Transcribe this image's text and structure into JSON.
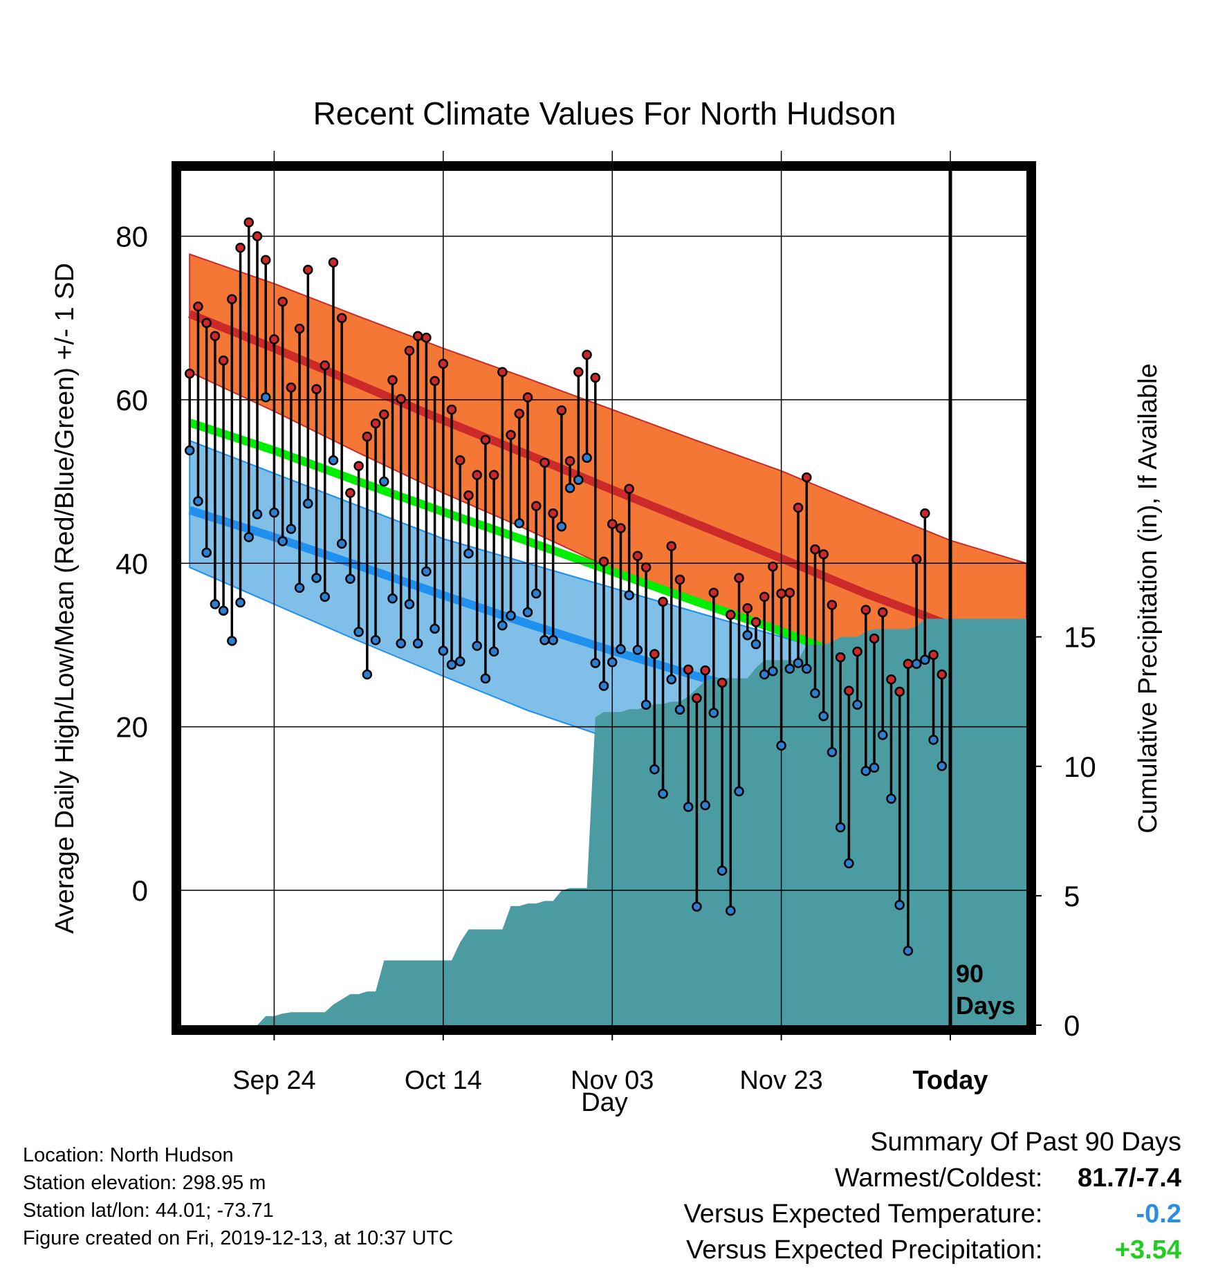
{
  "chart_data": {
    "type": "line",
    "title": "Recent Climate Values For North Hudson",
    "xlabel": "Day",
    "ylabel": "Average Daily High/Low/Mean (Red/Blue/Green) +/- 1 SD",
    "y2label": "Cumulative Precipitation (in), If Available",
    "x_tick_labels": [
      "Sep 24",
      "Oct 14",
      "Nov 03",
      "Nov 23",
      "Today"
    ],
    "x_tick_days": [
      10,
      30,
      50,
      70,
      90
    ],
    "x_range": [
      -1,
      99
    ],
    "y_ticks": [
      0,
      20,
      40,
      60,
      80
    ],
    "ylim": [
      -16.5,
      88
    ],
    "y2_ticks": [
      0,
      5,
      10,
      15
    ],
    "y2lim": [
      0,
      33
    ],
    "today_marker": "90\nDays",
    "grid": true,
    "colors": {
      "high_mean": "#cc2a2a",
      "high_band": "#f47735",
      "low_mean": "#2090ee",
      "low_band": "#7fbfe8",
      "overlap_band": "#901818",
      "mean_line": "#00ee00",
      "precip": "#4a9ba2",
      "observed_high": "#cc2a2a",
      "observed_low": "#2d7fd2"
    },
    "normal_high": {
      "x": [
        0,
        10,
        20,
        30,
        40,
        50,
        60,
        70,
        80,
        90,
        99
      ],
      "y": [
        70.5,
        66.3,
        61.9,
        57.5,
        53.3,
        49.0,
        44.8,
        40.6,
        36.3,
        32.4,
        29.4
      ]
    },
    "normal_high_sd": {
      "x": [
        0,
        10,
        20,
        30,
        40,
        50,
        60,
        70,
        80,
        90,
        99
      ],
      "upper": [
        77.8,
        74.2,
        70.2,
        66.3,
        62.6,
        58.8,
        55.0,
        51.3,
        47.0,
        42.8,
        40.0
      ],
      "lower": [
        63.4,
        58.6,
        53.5,
        48.6,
        44.1,
        39.3,
        35.3,
        31.2,
        27.8,
        24.5,
        18.8
      ]
    },
    "normal_mean": {
      "x": [
        0,
        10,
        20,
        30,
        40,
        50,
        60,
        70,
        80,
        90,
        99
      ],
      "y": [
        57.2,
        53.8,
        50.0,
        46.3,
        42.7,
        39.0,
        35.3,
        31.7,
        27.6,
        23.0,
        18.3
      ]
    },
    "normal_low": {
      "x": [
        0,
        10,
        20,
        30,
        40,
        50,
        60,
        70,
        80,
        90,
        99
      ],
      "y": [
        46.5,
        43.2,
        39.7,
        36.1,
        32.6,
        29.3,
        26.2,
        23.3,
        19.1,
        14.8,
        12.0
      ]
    },
    "normal_low_sd": {
      "x": [
        0,
        10,
        20,
        30,
        40,
        50,
        60,
        70,
        80,
        90,
        99
      ],
      "upper": [
        55.0,
        51.0,
        47.0,
        43.0,
        40.0,
        37.0,
        34.0,
        31.0,
        28.0,
        25.8,
        24.2
      ],
      "lower": [
        39.5,
        35.0,
        30.5,
        26.2,
        22.0,
        18.5,
        13.0,
        6.0,
        1.5,
        -2.0,
        -4.0
      ]
    },
    "observed": {
      "high": [
        63.2,
        71.4,
        69.4,
        67.8,
        64.8,
        72.3,
        78.6,
        81.7,
        80.0,
        77.1,
        67.4,
        72.0,
        61.5,
        68.7,
        75.9,
        61.3,
        64.2,
        76.8,
        70.0,
        48.6,
        51.9,
        55.5,
        57.1,
        58.2,
        62.4,
        60.1,
        66.0,
        67.8,
        67.6,
        62.3,
        64.4,
        58.8,
        52.6,
        48.3,
        50.8,
        55.1,
        50.8,
        63.4,
        55.7,
        58.3,
        60.3,
        47.0,
        52.3,
        46.1,
        58.7,
        52.5,
        63.4,
        65.5,
        62.7,
        40.2,
        44.8,
        44.3,
        49.1,
        40.9,
        39.5,
        28.9,
        35.3,
        42.1,
        38.0,
        27.0,
        23.5,
        26.9,
        36.4,
        25.4,
        33.7,
        38.2,
        34.5,
        32.8,
        35.9,
        39.6,
        36.3,
        36.4,
        46.8,
        50.5,
        41.7,
        41.1,
        34.9,
        28.5,
        24.4,
        29.2,
        34.3,
        30.8,
        34.0,
        25.8,
        24.3,
        27.7,
        40.5,
        46.1,
        28.8,
        26.4
      ],
      "low": [
        53.8,
        47.6,
        41.3,
        35.0,
        34.2,
        30.5,
        35.2,
        43.2,
        46.0,
        60.3,
        46.2,
        42.7,
        44.2,
        37.0,
        47.3,
        38.2,
        35.9,
        52.6,
        42.4,
        38.1,
        31.6,
        26.4,
        30.6,
        50.0,
        35.7,
        30.2,
        35.0,
        30.2,
        39.0,
        32.0,
        29.3,
        27.6,
        28.0,
        41.2,
        29.9,
        25.9,
        29.2,
        32.4,
        33.6,
        44.9,
        34.0,
        36.3,
        30.6,
        30.6,
        44.5,
        49.2,
        50.2,
        52.9,
        27.8,
        25.0,
        27.9,
        29.5,
        36.1,
        29.4,
        22.7,
        14.8,
        11.8,
        25.8,
        22.1,
        10.2,
        -2.0,
        10.4,
        21.7,
        2.4,
        -2.5,
        12.1,
        31.2,
        30.1,
        26.4,
        26.8,
        17.7,
        27.1,
        27.8,
        27.1,
        24.1,
        21.3,
        16.9,
        7.7,
        3.3,
        22.7,
        14.6,
        15.0,
        19.0,
        11.2,
        -1.8,
        -7.4,
        27.7,
        28.2,
        18.4,
        15.2
      ]
    },
    "precip_cumulative": {
      "x": [
        0,
        8,
        9,
        10,
        11,
        12,
        13,
        14,
        15,
        16,
        17,
        18,
        19,
        20,
        21,
        22,
        23,
        24,
        25,
        26,
        27,
        28,
        29,
        30,
        31,
        32,
        33,
        34,
        35,
        36,
        37,
        38,
        39,
        40,
        41,
        42,
        43,
        44,
        45,
        46,
        47,
        48,
        49,
        50,
        51,
        52,
        53,
        54,
        55,
        56,
        57,
        58,
        59,
        60,
        61,
        62,
        63,
        64,
        65,
        66,
        67,
        68,
        69,
        70,
        71,
        72,
        73,
        74,
        75,
        76,
        77,
        78,
        79,
        80,
        81,
        82,
        83,
        84,
        85,
        86,
        87,
        88,
        89,
        90,
        99
      ],
      "y": [
        0,
        0,
        0.35,
        0.35,
        0.45,
        0.5,
        0.5,
        0.5,
        0.5,
        0.5,
        0.8,
        1.0,
        1.2,
        1.2,
        1.3,
        1.3,
        2.5,
        2.5,
        2.5,
        2.5,
        2.5,
        2.5,
        2.5,
        2.5,
        2.5,
        3.2,
        3.7,
        3.7,
        3.7,
        3.7,
        3.7,
        4.6,
        4.6,
        4.7,
        4.7,
        4.8,
        4.8,
        5.2,
        5.3,
        5.3,
        5.3,
        11.9,
        12.1,
        12.1,
        12.1,
        12.2,
        12.2,
        12.3,
        12.4,
        12.4,
        12.5,
        12.5,
        12.7,
        13.0,
        13.3,
        13.4,
        13.4,
        13.4,
        13.4,
        13.4,
        13.8,
        14.1,
        14.1,
        14.1,
        14.1,
        14.1,
        14.7,
        14.7,
        14.7,
        14.8,
        15.0,
        15.0,
        15.0,
        15.2,
        15.3,
        15.3,
        15.3,
        15.3,
        15.3,
        15.4,
        15.7,
        15.7,
        15.7,
        15.7,
        15.7
      ]
    }
  },
  "footer": {
    "location": "Location: North Hudson",
    "elevation": "Station elevation: 298.95 m",
    "latlon": "Station lat/lon: 44.01; -73.71",
    "created": "Figure created on Fri, 2019-12-13, at 10:37 UTC"
  },
  "summary": {
    "heading": "Summary Of Past 90 Days",
    "warmest_coldest_label": "Warmest/Coldest:",
    "warmest_coldest_value": "81.7/-7.4",
    "vs_temp_label": "Versus Expected Temperature:",
    "vs_temp_value": "-0.2",
    "vs_temp_color": "#2a8ee6",
    "vs_precip_label": "Versus Expected Precipitation:",
    "vs_precip_value": "+3.54",
    "vs_precip_color": "#22cc22"
  }
}
